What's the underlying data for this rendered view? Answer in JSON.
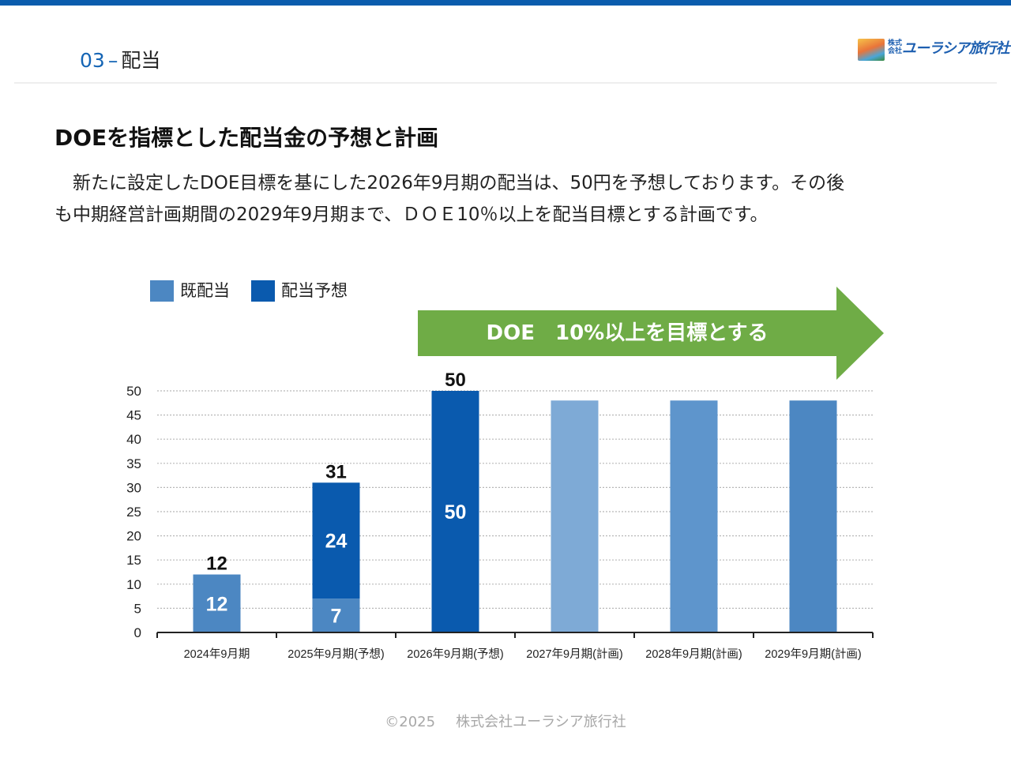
{
  "header": {
    "section_number": "03",
    "section_separator": "–",
    "section_title": "配当",
    "logo": {
      "prefix_top": "株式",
      "prefix_bottom": "会社",
      "name": "ユーラシア旅行社",
      "icon": "travel-photo-logo-icon"
    }
  },
  "content": {
    "heading": "DOEを指標とした配当金の予想と計画",
    "paragraph_lines": [
      "　新たに設定したDOE目標を基にした2026年9月期の配当は、50円を予想しております。その後",
      "も中期経営計画期間の2029年9月期まで、ＤＯＥ10％以上を配当目標とする計画です。"
    ]
  },
  "legend": [
    {
      "label": "既配当",
      "color": "#4c87c2"
    },
    {
      "label": "配当予想",
      "color": "#0a5aae"
    }
  ],
  "arrow_banner": {
    "text": "DOE　10%以上を目標とする",
    "color": "#6fac46"
  },
  "chart_data": {
    "type": "bar",
    "stacked": true,
    "categories": [
      "2024年9月期",
      "2025年9月期(予想)",
      "2026年9月期(予想)",
      "2027年9月期(計画)",
      "2028年9月期(計画)",
      "2029年9月期(計画)"
    ],
    "series": [
      {
        "name": "既配当",
        "color": "#4c87c2",
        "values": [
          12,
          7,
          null,
          null,
          null,
          null
        ],
        "labels": [
          "12",
          "7",
          "",
          "",
          "",
          ""
        ]
      },
      {
        "name": "配当予想",
        "color": "#0a5aae",
        "values": [
          null,
          24,
          50,
          null,
          null,
          null
        ],
        "labels": [
          "",
          "24",
          "50",
          "",
          "",
          ""
        ]
      },
      {
        "values": [
          null,
          null,
          null,
          48,
          48,
          48
        ],
        "colors": [
          "#7eaad6",
          "#5e95cc",
          "#4c87c2"
        ],
        "labels": [
          "",
          "",
          "",
          "",
          "",
          ""
        ]
      }
    ],
    "totals": [
      "12",
      "31",
      "50",
      "",
      "",
      ""
    ],
    "ylim": [
      0,
      50
    ],
    "yticks": [
      0,
      5,
      10,
      15,
      20,
      25,
      30,
      35,
      40,
      45,
      50
    ],
    "grid": true,
    "legend_position": "top-left"
  },
  "footer": {
    "copyright": "©2025",
    "company": "株式会社ユーラシア旅行社"
  }
}
